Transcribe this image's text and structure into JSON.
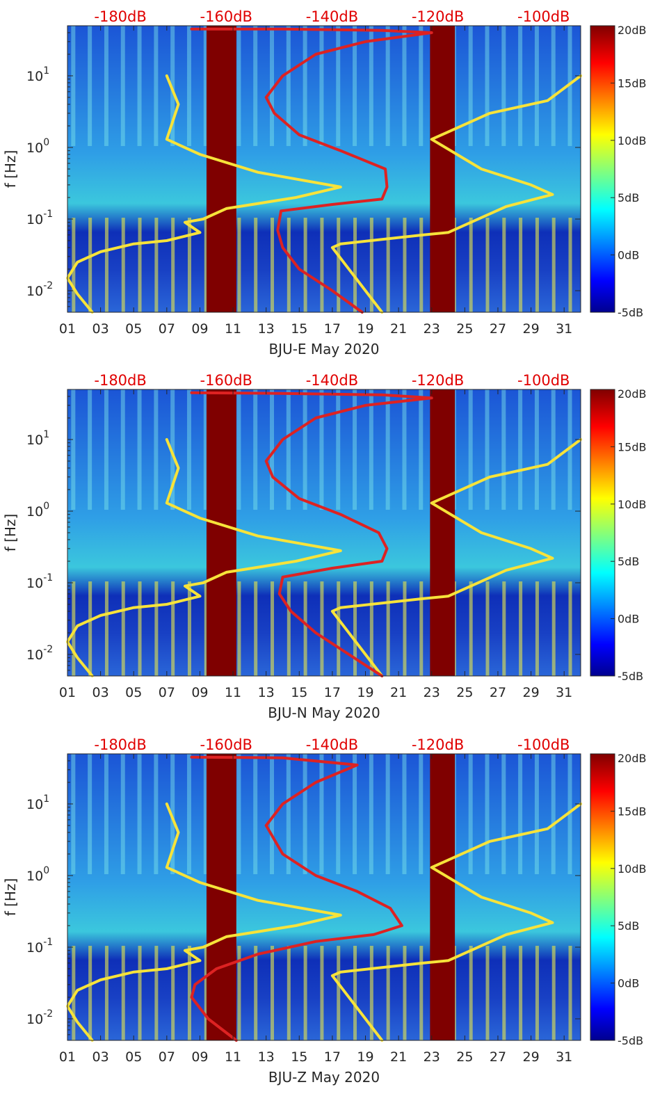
{
  "chart_data": [
    {
      "type": "heatmap",
      "xlabel": "BJU-E May 2020",
      "ylabel": "f [Hz]",
      "x_ticks": [
        "01",
        "03",
        "05",
        "07",
        "09",
        "11",
        "13",
        "15",
        "17",
        "19",
        "21",
        "23",
        "25",
        "27",
        "29",
        "31"
      ],
      "x_range_days": [
        1,
        32
      ],
      "y_scale": "log",
      "y_range_hz": [
        0.005,
        50
      ],
      "y_ticks": [
        {
          "base": "10",
          "exp": "1",
          "value": 10
        },
        {
          "base": "10",
          "exp": "0",
          "value": 1
        },
        {
          "base": "10",
          "exp": "-1",
          "value": 0.1
        },
        {
          "base": "10",
          "exp": "-2",
          "value": 0.01
        }
      ],
      "top_axis_ticks": [
        "-180dB",
        "-160dB",
        "-140dB",
        "-120dB",
        "-100dB"
      ],
      "top_axis_range_db": [
        -190,
        -93
      ],
      "colorbar": {
        "ticks": [
          "20dB",
          "15dB",
          "10dB",
          "5dB",
          "0dB",
          "-5dB"
        ],
        "range_db": [
          -5,
          20
        ]
      },
      "gaps_days": [
        [
          9.4,
          11.2
        ],
        [
          22.9,
          24.4
        ]
      ],
      "series": [
        {
          "color": "#f7e33a",
          "points": [
            [
              2.5,
              0.005
            ],
            [
              1.6,
              0.009
            ],
            [
              1.0,
              0.015
            ],
            [
              1.6,
              0.025
            ],
            [
              3.0,
              0.035
            ],
            [
              5.0,
              0.045
            ],
            [
              7.0,
              0.05
            ],
            [
              9.0,
              0.065
            ],
            [
              8.1,
              0.09
            ],
            [
              9.2,
              0.1
            ],
            [
              10.6,
              0.14
            ],
            [
              14.8,
              0.2
            ],
            [
              17.5,
              0.28
            ],
            [
              12.5,
              0.45
            ],
            [
              9.0,
              0.8
            ],
            [
              7.0,
              1.3
            ],
            [
              7.7,
              4.0
            ],
            [
              7.0,
              10.0
            ]
          ]
        },
        {
          "color": "#f7e33a",
          "points": [
            [
              20.0,
              0.005
            ],
            [
              17.0,
              0.04
            ],
            [
              17.5,
              0.045
            ],
            [
              22.5,
              0.06
            ],
            [
              24.0,
              0.065
            ],
            [
              27.5,
              0.15
            ],
            [
              30.3,
              0.22
            ],
            [
              29.0,
              0.3
            ],
            [
              26.0,
              0.5
            ],
            [
              23.0,
              1.3
            ],
            [
              26.5,
              3.0
            ],
            [
              30.0,
              4.5
            ],
            [
              32.0,
              10.0
            ]
          ]
        },
        {
          "color": "#dd2222",
          "points": [
            [
              18.8,
              0.005
            ],
            [
              17.0,
              0.01
            ],
            [
              15.0,
              0.02
            ],
            [
              14.0,
              0.04
            ],
            [
              13.7,
              0.07
            ],
            [
              13.9,
              0.13
            ],
            [
              17.0,
              0.16
            ],
            [
              20.0,
              0.19
            ],
            [
              20.3,
              0.28
            ],
            [
              20.2,
              0.5
            ],
            [
              17.5,
              0.9
            ],
            [
              15.0,
              1.5
            ],
            [
              13.5,
              3.0
            ],
            [
              13.0,
              5.0
            ],
            [
              14.0,
              10.0
            ],
            [
              16.0,
              20.0
            ],
            [
              19.0,
              30.0
            ],
            [
              23.0,
              40.0
            ],
            [
              20.0,
              43.0
            ],
            [
              14.0,
              45.0
            ],
            [
              8.5,
              45.0
            ]
          ]
        }
      ]
    },
    {
      "type": "heatmap",
      "xlabel": "BJU-N May 2020",
      "ylabel": "f [Hz]",
      "x_ticks": [
        "01",
        "03",
        "05",
        "07",
        "09",
        "11",
        "13",
        "15",
        "17",
        "19",
        "21",
        "23",
        "25",
        "27",
        "29",
        "31"
      ],
      "x_range_days": [
        1,
        32
      ],
      "y_scale": "log",
      "y_range_hz": [
        0.005,
        50
      ],
      "y_ticks": [
        {
          "base": "10",
          "exp": "1",
          "value": 10
        },
        {
          "base": "10",
          "exp": "0",
          "value": 1
        },
        {
          "base": "10",
          "exp": "-1",
          "value": 0.1
        },
        {
          "base": "10",
          "exp": "-2",
          "value": 0.01
        }
      ],
      "top_axis_ticks": [
        "-180dB",
        "-160dB",
        "-140dB",
        "-120dB",
        "-100dB"
      ],
      "top_axis_range_db": [
        -190,
        -93
      ],
      "colorbar": {
        "ticks": [
          "20dB",
          "15dB",
          "10dB",
          "5dB",
          "0dB",
          "-5dB"
        ],
        "range_db": [
          -5,
          20
        ]
      },
      "gaps_days": [
        [
          9.4,
          11.2
        ],
        [
          22.9,
          24.4
        ]
      ],
      "series": [
        {
          "color": "#f7e33a",
          "points": [
            [
              2.5,
              0.005
            ],
            [
              1.6,
              0.009
            ],
            [
              1.0,
              0.015
            ],
            [
              1.6,
              0.025
            ],
            [
              3.0,
              0.035
            ],
            [
              5.0,
              0.045
            ],
            [
              7.0,
              0.05
            ],
            [
              9.0,
              0.065
            ],
            [
              8.1,
              0.09
            ],
            [
              9.2,
              0.1
            ],
            [
              10.6,
              0.14
            ],
            [
              14.8,
              0.2
            ],
            [
              17.5,
              0.28
            ],
            [
              12.5,
              0.45
            ],
            [
              9.0,
              0.8
            ],
            [
              7.0,
              1.3
            ],
            [
              7.7,
              4.0
            ],
            [
              7.0,
              10.0
            ]
          ]
        },
        {
          "color": "#f7e33a",
          "points": [
            [
              20.0,
              0.005
            ],
            [
              17.0,
              0.04
            ],
            [
              17.5,
              0.045
            ],
            [
              22.5,
              0.06
            ],
            [
              24.0,
              0.065
            ],
            [
              27.5,
              0.15
            ],
            [
              30.3,
              0.22
            ],
            [
              29.0,
              0.3
            ],
            [
              26.0,
              0.5
            ],
            [
              23.0,
              1.3
            ],
            [
              26.5,
              3.0
            ],
            [
              30.0,
              4.5
            ],
            [
              32.0,
              10.0
            ]
          ]
        },
        {
          "color": "#dd2222",
          "points": [
            [
              20.0,
              0.005
            ],
            [
              18.0,
              0.01
            ],
            [
              16.0,
              0.02
            ],
            [
              14.5,
              0.04
            ],
            [
              13.8,
              0.07
            ],
            [
              14.0,
              0.12
            ],
            [
              17.0,
              0.16
            ],
            [
              20.0,
              0.2
            ],
            [
              20.3,
              0.3
            ],
            [
              19.8,
              0.5
            ],
            [
              17.5,
              0.9
            ],
            [
              15.0,
              1.5
            ],
            [
              13.4,
              3.0
            ],
            [
              13.0,
              5.0
            ],
            [
              14.0,
              10.0
            ],
            [
              16.0,
              20.0
            ],
            [
              19.0,
              30.0
            ],
            [
              23.0,
              38.0
            ],
            [
              20.0,
              42.0
            ],
            [
              14.0,
              44.0
            ],
            [
              8.5,
              45.0
            ]
          ]
        }
      ]
    },
    {
      "type": "heatmap",
      "xlabel": "BJU-Z May 2020",
      "ylabel": "f [Hz]",
      "x_ticks": [
        "01",
        "03",
        "05",
        "07",
        "09",
        "11",
        "13",
        "15",
        "17",
        "19",
        "21",
        "23",
        "25",
        "27",
        "29",
        "31"
      ],
      "x_range_days": [
        1,
        32
      ],
      "y_scale": "log",
      "y_range_hz": [
        0.005,
        50
      ],
      "y_ticks": [
        {
          "base": "10",
          "exp": "1",
          "value": 10
        },
        {
          "base": "10",
          "exp": "0",
          "value": 1
        },
        {
          "base": "10",
          "exp": "-1",
          "value": 0.1
        },
        {
          "base": "10",
          "exp": "-2",
          "value": 0.01
        }
      ],
      "top_axis_ticks": [
        "-180dB",
        "-160dB",
        "-140dB",
        "-120dB",
        "-100dB"
      ],
      "top_axis_range_db": [
        -190,
        -93
      ],
      "colorbar": {
        "ticks": [
          "20dB",
          "15dB",
          "10dB",
          "5dB",
          "0dB",
          "-5dB"
        ],
        "range_db": [
          -5,
          20
        ]
      },
      "gaps_days": [
        [
          9.4,
          11.2
        ],
        [
          22.9,
          24.4
        ]
      ],
      "series": [
        {
          "color": "#f7e33a",
          "points": [
            [
              2.5,
              0.005
            ],
            [
              1.6,
              0.009
            ],
            [
              1.0,
              0.015
            ],
            [
              1.6,
              0.025
            ],
            [
              3.0,
              0.035
            ],
            [
              5.0,
              0.045
            ],
            [
              7.0,
              0.05
            ],
            [
              9.0,
              0.065
            ],
            [
              8.1,
              0.09
            ],
            [
              9.2,
              0.1
            ],
            [
              10.6,
              0.14
            ],
            [
              14.8,
              0.2
            ],
            [
              17.5,
              0.28
            ],
            [
              12.5,
              0.45
            ],
            [
              9.0,
              0.8
            ],
            [
              7.0,
              1.3
            ],
            [
              7.7,
              4.0
            ],
            [
              7.0,
              10.0
            ]
          ]
        },
        {
          "color": "#f7e33a",
          "points": [
            [
              20.0,
              0.005
            ],
            [
              17.0,
              0.04
            ],
            [
              17.5,
              0.045
            ],
            [
              22.5,
              0.06
            ],
            [
              24.0,
              0.065
            ],
            [
              27.5,
              0.15
            ],
            [
              30.3,
              0.22
            ],
            [
              29.0,
              0.3
            ],
            [
              26.0,
              0.5
            ],
            [
              23.0,
              1.3
            ],
            [
              26.5,
              3.0
            ],
            [
              30.0,
              4.5
            ],
            [
              32.0,
              10.0
            ]
          ]
        },
        {
          "color": "#dd2222",
          "points": [
            [
              11.2,
              0.005
            ],
            [
              9.5,
              0.01
            ],
            [
              8.5,
              0.02
            ],
            [
              8.7,
              0.03
            ],
            [
              10.0,
              0.05
            ],
            [
              12.5,
              0.08
            ],
            [
              16.0,
              0.12
            ],
            [
              19.5,
              0.15
            ],
            [
              21.2,
              0.2
            ],
            [
              20.5,
              0.35
            ],
            [
              18.5,
              0.6
            ],
            [
              16.0,
              1.0
            ],
            [
              14.0,
              2.0
            ],
            [
              13.0,
              5.0
            ],
            [
              14.0,
              10.0
            ],
            [
              16.0,
              20.0
            ],
            [
              18.5,
              35.0
            ],
            [
              14.0,
              44.0
            ],
            [
              8.5,
              45.0
            ]
          ]
        }
      ]
    }
  ]
}
